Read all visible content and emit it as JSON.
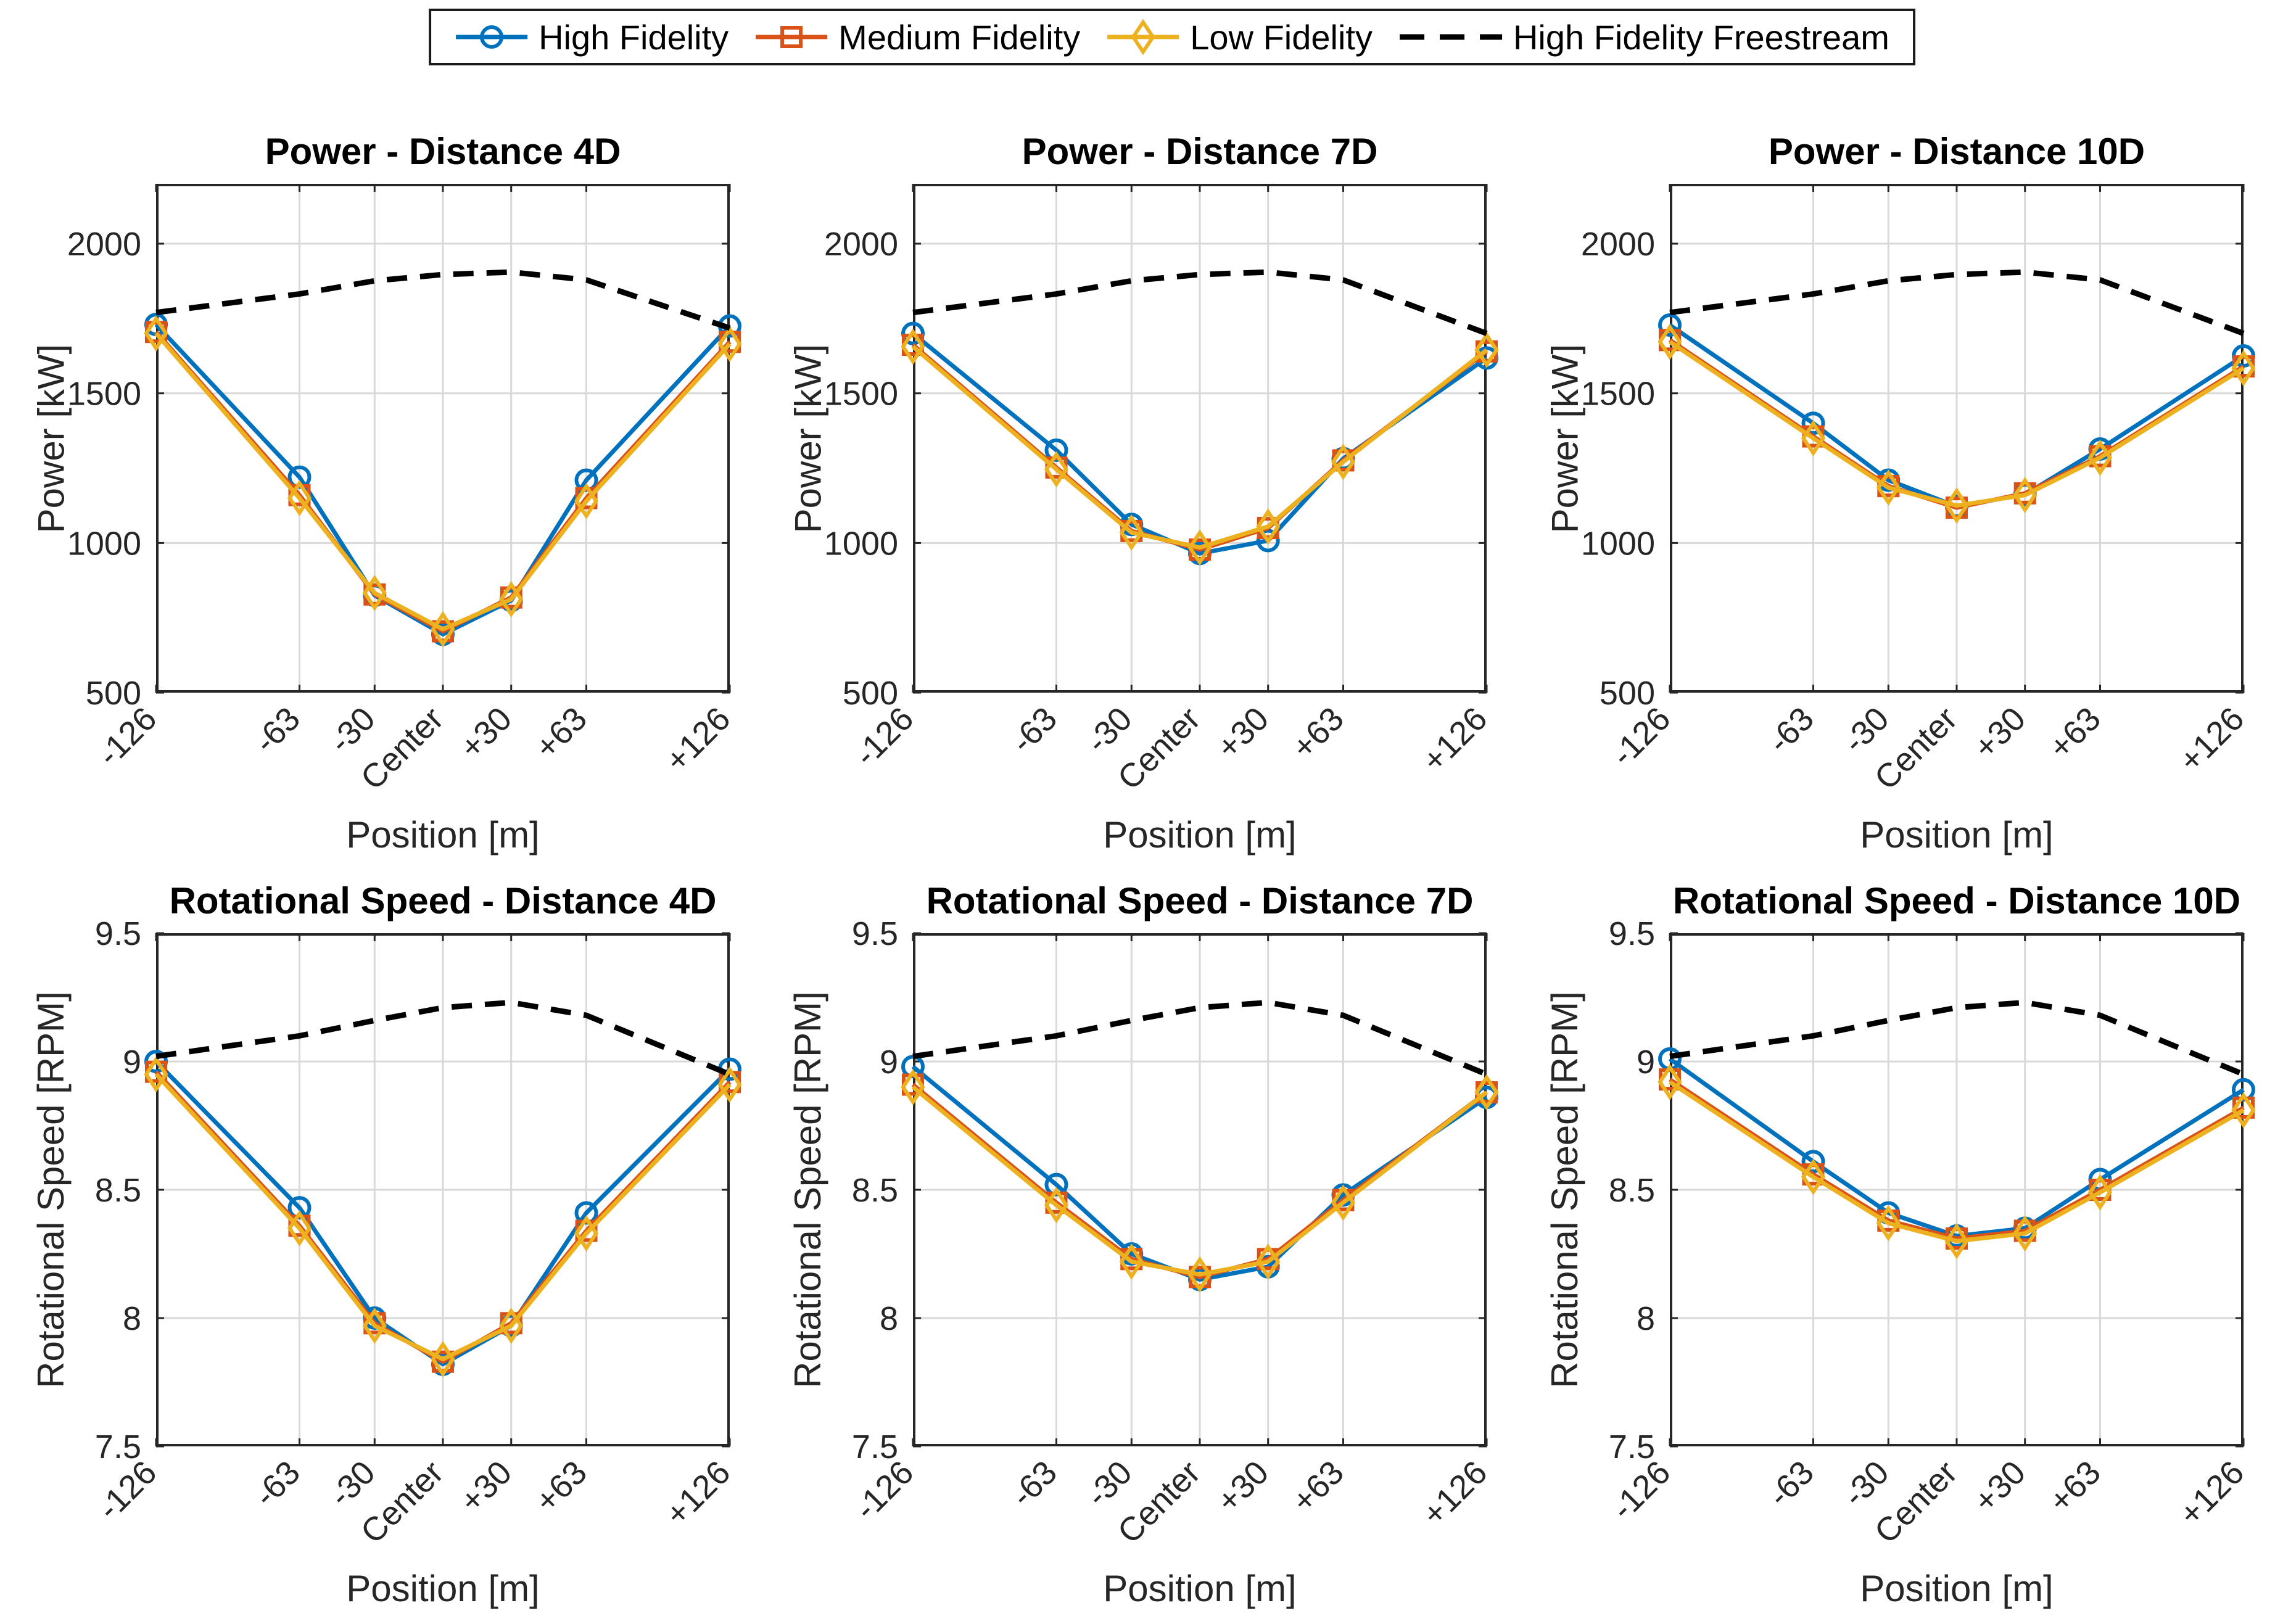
{
  "figure": {
    "background": "#ffffff",
    "axes_color": "#262626",
    "grid_color": "#d9d9d9"
  },
  "legend": {
    "items": [
      {
        "label": "High Fidelity",
        "color": "#0072BD",
        "marker": "circle",
        "line": "solid"
      },
      {
        "label": "Medium Fidelity",
        "color": "#D95319",
        "marker": "square",
        "line": "solid"
      },
      {
        "label": "Low Fidelity",
        "color": "#EDB120",
        "marker": "diamond",
        "line": "solid"
      },
      {
        "label": "High Fidelity Freestream",
        "color": "#000000",
        "marker": "none",
        "line": "dashed"
      }
    ]
  },
  "chart_data": [
    {
      "id": "power-4d",
      "type": "line",
      "title": "Power - Distance 4D",
      "xlabel": "Position [m]",
      "ylabel": "Power [kW]",
      "x": [
        -126,
        -63,
        -30,
        0,
        30,
        63,
        126
      ],
      "x_tick_labels": [
        "-126",
        "-63",
        "-30",
        "Center",
        "+30",
        "+63",
        "+126"
      ],
      "xlim": [
        -126,
        126
      ],
      "ylim": [
        500,
        2200
      ],
      "yticks": [
        500,
        1000,
        1500,
        2000
      ],
      "ytick_labels": [
        "500",
        "1000",
        "1500",
        "2000"
      ],
      "grid": true,
      "legend_position": "top",
      "series": [
        {
          "name": "High Fidelity",
          "legend_ref": 0,
          "values": [
            1730,
            1220,
            825,
            695,
            808,
            1210,
            1725
          ]
        },
        {
          "name": "Medium Fidelity",
          "legend_ref": 1,
          "values": [
            1705,
            1160,
            828,
            705,
            818,
            1150,
            1672
          ]
        },
        {
          "name": "Low Fidelity",
          "legend_ref": 2,
          "values": [
            1700,
            1150,
            833,
            712,
            812,
            1140,
            1665
          ]
        },
        {
          "name": "High Fidelity Freestream",
          "legend_ref": 3,
          "values": [
            1770,
            1832,
            1876,
            1897,
            1905,
            1879,
            1718
          ]
        }
      ]
    },
    {
      "id": "power-7d",
      "type": "line",
      "title": "Power - Distance 7D",
      "xlabel": "Position [m]",
      "ylabel": "Power [kW]",
      "x": [
        -126,
        -63,
        -30,
        0,
        30,
        63,
        126
      ],
      "x_tick_labels": [
        "-126",
        "-63",
        "-30",
        "Center",
        "+30",
        "+63",
        "+126"
      ],
      "xlim": [
        -126,
        126
      ],
      "ylim": [
        500,
        2200
      ],
      "yticks": [
        500,
        1000,
        1500,
        2000
      ],
      "ytick_labels": [
        "500",
        "1000",
        "1500",
        "2000"
      ],
      "grid": true,
      "legend_position": "top",
      "series": [
        {
          "name": "High Fidelity",
          "legend_ref": 0,
          "values": [
            1700,
            1310,
            1062,
            965,
            1008,
            1282,
            1618
          ]
        },
        {
          "name": "Medium Fidelity",
          "legend_ref": 1,
          "values": [
            1662,
            1252,
            1040,
            978,
            1050,
            1276,
            1640
          ]
        },
        {
          "name": "Low Fidelity",
          "legend_ref": 2,
          "values": [
            1656,
            1246,
            1035,
            985,
            1055,
            1271,
            1645
          ]
        },
        {
          "name": "High Fidelity Freestream",
          "legend_ref": 3,
          "values": [
            1770,
            1832,
            1876,
            1897,
            1905,
            1879,
            1700
          ]
        }
      ]
    },
    {
      "id": "power-10d",
      "type": "line",
      "title": "Power - Distance 10D",
      "xlabel": "Position [m]",
      "ylabel": "Power [kW]",
      "x": [
        -126,
        -63,
        -30,
        0,
        30,
        63,
        126
      ],
      "x_tick_labels": [
        "-126",
        "-63",
        "-30",
        "Center",
        "+30",
        "+63",
        "+126"
      ],
      "xlim": [
        -126,
        126
      ],
      "ylim": [
        500,
        2200
      ],
      "yticks": [
        500,
        1000,
        1500,
        2000
      ],
      "ytick_labels": [
        "500",
        "1000",
        "1500",
        "2000"
      ],
      "grid": true,
      "legend_position": "top",
      "series": [
        {
          "name": "High Fidelity",
          "legend_ref": 0,
          "values": [
            1728,
            1400,
            1210,
            1122,
            1162,
            1314,
            1625
          ]
        },
        {
          "name": "Medium Fidelity",
          "legend_ref": 1,
          "values": [
            1678,
            1356,
            1190,
            1118,
            1166,
            1290,
            1590
          ]
        },
        {
          "name": "Low Fidelity",
          "legend_ref": 2,
          "values": [
            1672,
            1350,
            1185,
            1125,
            1160,
            1285,
            1584
          ]
        },
        {
          "name": "High Fidelity Freestream",
          "legend_ref": 3,
          "values": [
            1770,
            1832,
            1876,
            1897,
            1905,
            1879,
            1700
          ]
        }
      ]
    },
    {
      "id": "rpm-4d",
      "type": "line",
      "title": "Rotational Speed - Distance 4D",
      "xlabel": "Position [m]",
      "ylabel": "Rotational Speed [RPM]",
      "x": [
        -126,
        -63,
        -30,
        0,
        30,
        63,
        126
      ],
      "x_tick_labels": [
        "-126",
        "-63",
        "-30",
        "Center",
        "+30",
        "+63",
        "+126"
      ],
      "xlim": [
        -126,
        126
      ],
      "ylim": [
        7.5,
        9.5
      ],
      "yticks": [
        7.5,
        8,
        8.5,
        9,
        9.5
      ],
      "ytick_labels": [
        "7.5",
        "8",
        "8.5",
        "9",
        "9.5"
      ],
      "grid": true,
      "legend_position": "top",
      "series": [
        {
          "name": "High Fidelity",
          "legend_ref": 0,
          "values": [
            9.0,
            8.43,
            8.0,
            7.82,
            7.97,
            8.41,
            8.97
          ]
        },
        {
          "name": "Medium Fidelity",
          "legend_ref": 1,
          "values": [
            8.96,
            8.36,
            7.98,
            7.83,
            7.98,
            8.34,
            8.92
          ]
        },
        {
          "name": "Low Fidelity",
          "legend_ref": 2,
          "values": [
            8.95,
            8.35,
            7.97,
            7.84,
            7.97,
            8.33,
            8.91
          ]
        },
        {
          "name": "High Fidelity Freestream",
          "legend_ref": 3,
          "values": [
            9.02,
            9.1,
            9.16,
            9.21,
            9.23,
            9.18,
            8.95
          ]
        }
      ]
    },
    {
      "id": "rpm-7d",
      "type": "line",
      "title": "Rotational Speed - Distance 7D",
      "xlabel": "Position [m]",
      "ylabel": "Rotational Speed [RPM]",
      "x": [
        -126,
        -63,
        -30,
        0,
        30,
        63,
        126
      ],
      "x_tick_labels": [
        "-126",
        "-63",
        "-30",
        "Center",
        "+30",
        "+63",
        "+126"
      ],
      "xlim": [
        -126,
        126
      ],
      "ylim": [
        7.5,
        9.5
      ],
      "yticks": [
        7.5,
        8,
        8.5,
        9,
        9.5
      ],
      "ytick_labels": [
        "7.5",
        "8",
        "8.5",
        "9",
        "9.5"
      ],
      "grid": true,
      "legend_position": "top",
      "series": [
        {
          "name": "High Fidelity",
          "legend_ref": 0,
          "values": [
            8.98,
            8.52,
            8.25,
            8.15,
            8.2,
            8.48,
            8.86
          ]
        },
        {
          "name": "Medium Fidelity",
          "legend_ref": 1,
          "values": [
            8.91,
            8.45,
            8.23,
            8.16,
            8.23,
            8.46,
            8.88
          ]
        },
        {
          "name": "Low Fidelity",
          "legend_ref": 2,
          "values": [
            8.9,
            8.44,
            8.22,
            8.17,
            8.22,
            8.45,
            8.88
          ]
        },
        {
          "name": "High Fidelity Freestream",
          "legend_ref": 3,
          "values": [
            9.02,
            9.1,
            9.16,
            9.21,
            9.23,
            9.18,
            8.95
          ]
        }
      ]
    },
    {
      "id": "rpm-10d",
      "type": "line",
      "title": "Rotational Speed - Distance 10D",
      "xlabel": "Position [m]",
      "ylabel": "Rotational Speed [RPM]",
      "x": [
        -126,
        -63,
        -30,
        0,
        30,
        63,
        126
      ],
      "x_tick_labels": [
        "-126",
        "-63",
        "-30",
        "Center",
        "+30",
        "+63",
        "+126"
      ],
      "xlim": [
        -126,
        126
      ],
      "ylim": [
        7.5,
        9.5
      ],
      "yticks": [
        7.5,
        8,
        8.5,
        9,
        9.5
      ],
      "ytick_labels": [
        "7.5",
        "8",
        "8.5",
        "9",
        "9.5"
      ],
      "grid": true,
      "legend_position": "top",
      "series": [
        {
          "name": "High Fidelity",
          "legend_ref": 0,
          "values": [
            9.01,
            8.61,
            8.41,
            8.32,
            8.35,
            8.54,
            8.89
          ]
        },
        {
          "name": "Medium Fidelity",
          "legend_ref": 1,
          "values": [
            8.93,
            8.56,
            8.38,
            8.31,
            8.34,
            8.5,
            8.82
          ]
        },
        {
          "name": "Low Fidelity",
          "legend_ref": 2,
          "values": [
            8.92,
            8.55,
            8.37,
            8.3,
            8.33,
            8.49,
            8.81
          ]
        },
        {
          "name": "High Fidelity Freestream",
          "legend_ref": 3,
          "values": [
            9.02,
            9.1,
            9.16,
            9.21,
            9.23,
            9.18,
            8.95
          ]
        }
      ]
    }
  ]
}
